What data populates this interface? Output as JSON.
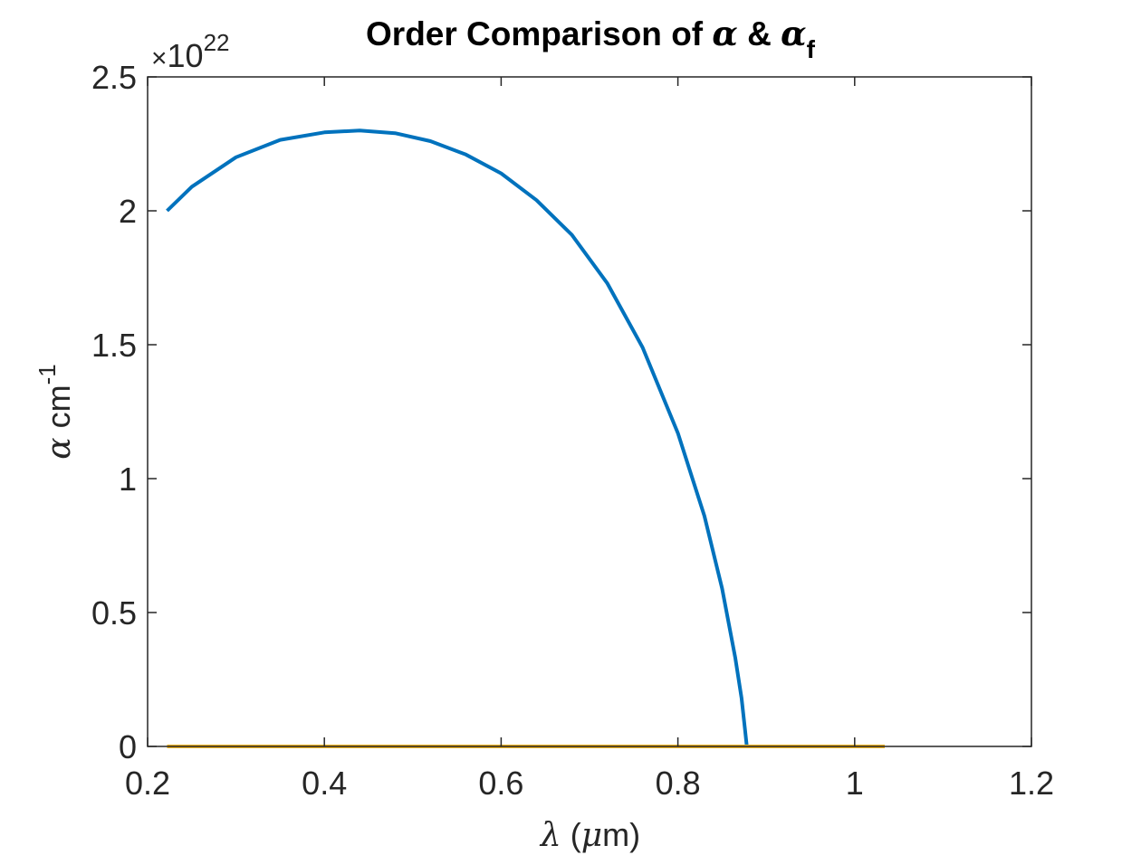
{
  "chart_data": {
    "type": "line",
    "title": {
      "prefix": "Order Comparison of ",
      "symbol1": "α",
      "amp": " & ",
      "symbol2": "α",
      "symbol2_sub": "f"
    },
    "xlabel": {
      "symbol": "λ",
      "open": " (",
      "mu": "μ",
      "unit": "m)"
    },
    "ylabel": {
      "symbol": "α",
      "unit": "cm",
      "exponent": "-1"
    },
    "multiplier": {
      "times": "×",
      "base": "10",
      "exponent": "22"
    },
    "xlim": [
      0.2,
      1.2
    ],
    "ylim": [
      0,
      2.5
    ],
    "xticks": [
      0.2,
      0.4,
      0.6,
      0.8,
      1.0,
      1.2
    ],
    "xtick_labels": [
      "0.2",
      "0.4",
      "0.6",
      "0.8",
      "1",
      "1.2"
    ],
    "yticks": [
      0,
      0.5,
      1,
      1.5,
      2,
      2.5
    ],
    "ytick_labels": [
      "0",
      "0.5",
      "1",
      "1.5",
      "2",
      "2.5"
    ],
    "grid": false,
    "series": [
      {
        "color": "#0072BD",
        "points": [
          [
            0.222,
            2.0
          ],
          [
            0.25,
            2.09
          ],
          [
            0.3,
            2.2
          ],
          [
            0.35,
            2.265
          ],
          [
            0.4,
            2.293
          ],
          [
            0.44,
            2.3
          ],
          [
            0.48,
            2.29
          ],
          [
            0.52,
            2.26
          ],
          [
            0.56,
            2.21
          ],
          [
            0.6,
            2.14
          ],
          [
            0.64,
            2.04
          ],
          [
            0.68,
            1.91
          ],
          [
            0.72,
            1.73
          ],
          [
            0.76,
            1.49
          ],
          [
            0.8,
            1.17
          ],
          [
            0.83,
            0.86
          ],
          [
            0.85,
            0.59
          ],
          [
            0.865,
            0.33
          ],
          [
            0.872,
            0.18
          ],
          [
            0.876,
            0.06
          ],
          [
            0.878,
            0.0
          ]
        ]
      },
      {
        "color": "#EDB120",
        "points": [
          [
            0.222,
            0.0
          ],
          [
            1.034,
            0.0
          ]
        ]
      }
    ]
  }
}
